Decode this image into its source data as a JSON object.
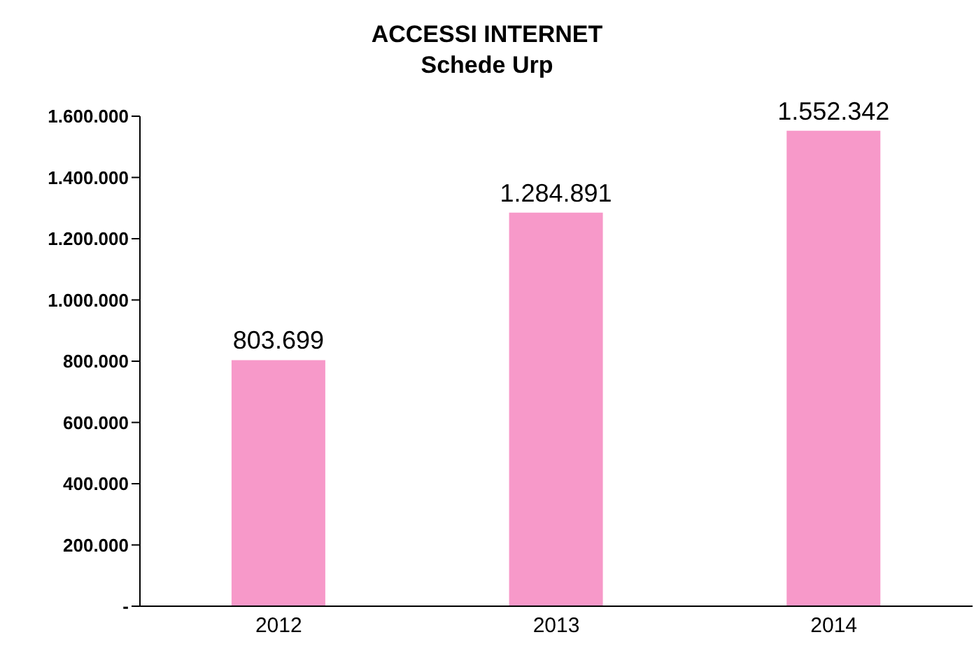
{
  "chart_data": {
    "type": "bar",
    "title": "ACCESSI INTERNET",
    "subtitle": "Schede Urp",
    "categories": [
      "2012",
      "2013",
      "2014"
    ],
    "values": [
      803699,
      1284891,
      1552342
    ],
    "value_labels": [
      "803.699",
      "1.284.891",
      "1.552.342"
    ],
    "color": "#f799c9",
    "ylim": [
      0,
      1600000
    ],
    "yticks": [
      {
        "value": 0,
        "label": "-"
      },
      {
        "value": 200000,
        "label": "200.000"
      },
      {
        "value": 400000,
        "label": "400.000"
      },
      {
        "value": 600000,
        "label": "600.000"
      },
      {
        "value": 800000,
        "label": "800.000"
      },
      {
        "value": 1000000,
        "label": "1.000.000"
      },
      {
        "value": 1200000,
        "label": "1.200.000"
      },
      {
        "value": 1400000,
        "label": "1.400.000"
      },
      {
        "value": 1600000,
        "label": "1.600.000"
      }
    ],
    "grid": false,
    "legend": false
  }
}
